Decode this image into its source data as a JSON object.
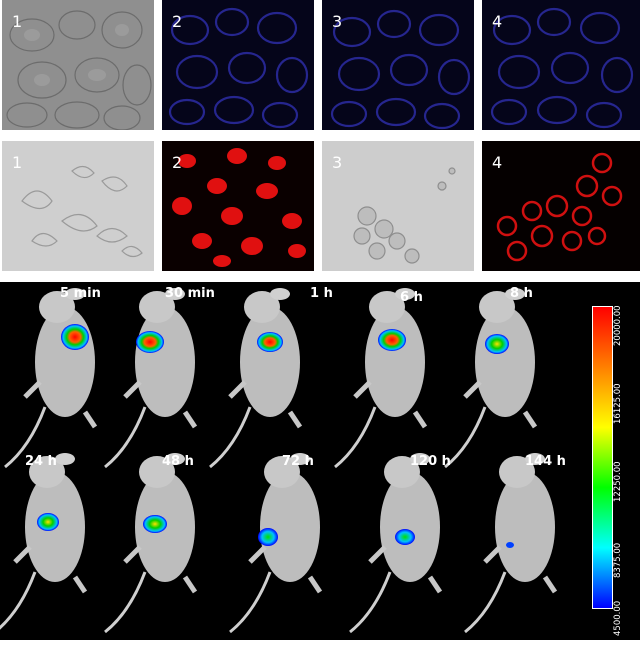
{
  "row1": {
    "panels": [
      {
        "label": "1",
        "kind": "brightfield"
      },
      {
        "label": "2",
        "kind": "blue-fluorescence"
      },
      {
        "label": "3",
        "kind": "blue-fluorescence"
      },
      {
        "label": "4",
        "kind": "blue-fluorescence"
      }
    ]
  },
  "row2": {
    "panels": [
      {
        "label": "1",
        "kind": "brightfield"
      },
      {
        "label": "2",
        "kind": "red-fluorescence"
      },
      {
        "label": "3",
        "kind": "brightfield"
      },
      {
        "label": "4",
        "kind": "red-fluorescence"
      }
    ]
  },
  "imaging": {
    "row1_times": [
      "5 min",
      "30 min",
      "1 h",
      "6 h",
      "8 h"
    ],
    "row2_times": [
      "24 h",
      "48 h",
      "72 h",
      "120 h",
      "144 h"
    ],
    "colorbar": {
      "ticks": [
        "20000.00",
        "16125.00",
        "12250.00",
        "8375.00",
        "4500.00"
      ],
      "colors": [
        "#ff0000",
        "#ff8000",
        "#ffff00",
        "#00ff00",
        "#00ffff",
        "#0000ff"
      ]
    }
  }
}
